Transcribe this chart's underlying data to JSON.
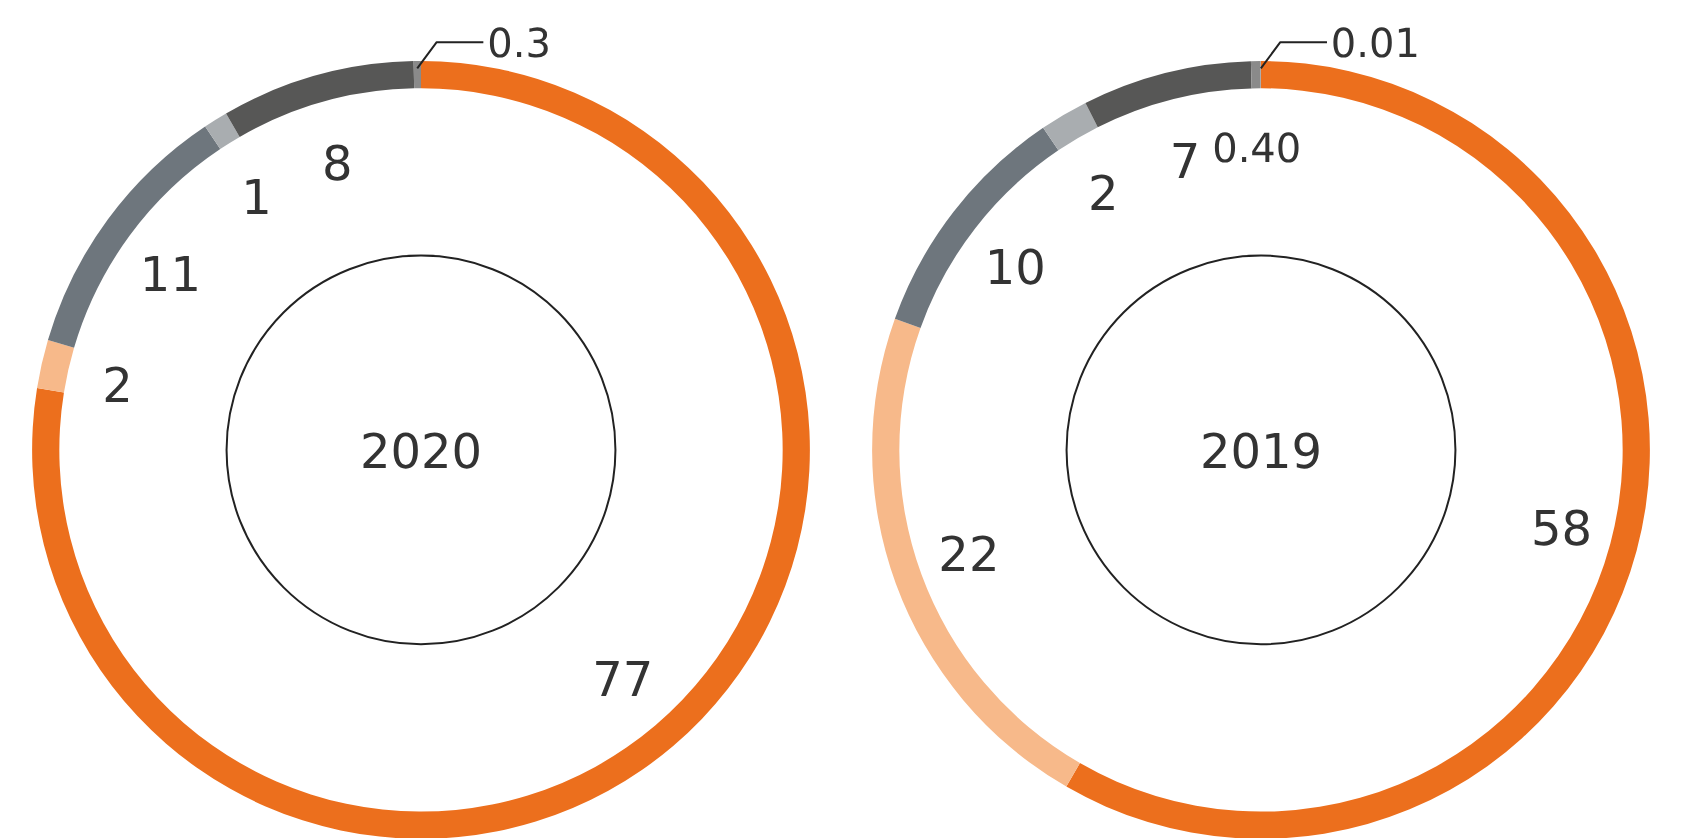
{
  "chart_data": [
    {
      "type": "donut",
      "title": "2020",
      "categories": [
        null,
        null,
        null,
        null,
        null,
        null
      ],
      "values": [
        77,
        2,
        11,
        1,
        8,
        0.3
      ],
      "value_labels": [
        "77",
        "2",
        "11",
        "1",
        "8",
        "0.3"
      ],
      "colors": [
        "#ec6f1d",
        "#f7b98a",
        "#6e767d",
        "#a9adb0",
        "#575756",
        "#8a8a8a"
      ],
      "data_labels": true
    },
    {
      "type": "donut",
      "title": "2019",
      "categories": [
        null,
        null,
        null,
        null,
        null,
        null,
        null
      ],
      "values": [
        58,
        22,
        10,
        2,
        7,
        0.4,
        0.01
      ],
      "value_labels": [
        "58",
        "22",
        "10",
        "2",
        "7",
        "0.40",
        "0.01"
      ],
      "colors": [
        "#ec6f1d",
        "#f7b98a",
        "#6e767d",
        "#a9adb0",
        "#575756",
        "#8a8a8a",
        "#c8c8c8"
      ],
      "data_labels": true
    }
  ]
}
